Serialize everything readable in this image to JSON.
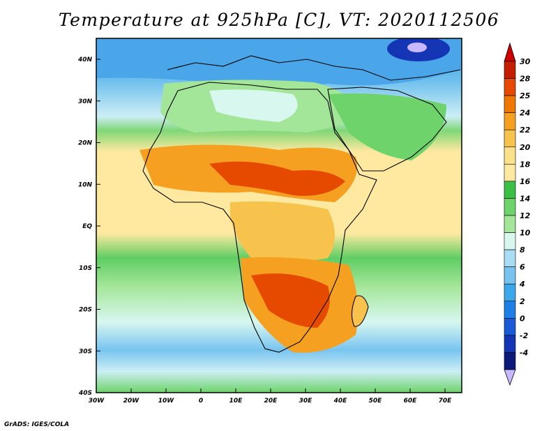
{
  "title": "Temperature at 925hPa [C], VT: 2020112506",
  "footer": "GrADS: IGES/COLA",
  "map": {
    "lon_ticks": [
      "30W",
      "20W",
      "10W",
      "0",
      "10E",
      "20E",
      "30E",
      "40E",
      "50E",
      "60E",
      "70E"
    ],
    "lat_ticks": [
      "40N",
      "30N",
      "20N",
      "10N",
      "EQ",
      "10S",
      "20S",
      "30S",
      "40S"
    ]
  },
  "colorbar": {
    "labels": [
      "30",
      "28",
      "25",
      "24",
      "22",
      "20",
      "18",
      "16",
      "14",
      "12",
      "10",
      "8",
      "6",
      "4",
      "2",
      "0",
      "-2",
      "-4"
    ],
    "colors": [
      "#c41e00",
      "#e64a00",
      "#f07800",
      "#f5a020",
      "#f7c34c",
      "#fbe28a",
      "#ffe9a0",
      "#3bbf44",
      "#6dd36a",
      "#a4e699",
      "#d7f7ef",
      "#a9dcf5",
      "#78c4f0",
      "#3ca8eb",
      "#1c80e6",
      "#1a5ad6",
      "#1436b4",
      "#0c1a7a"
    ],
    "below_color": "#c8b8ff",
    "above_color": "#cc0000"
  }
}
